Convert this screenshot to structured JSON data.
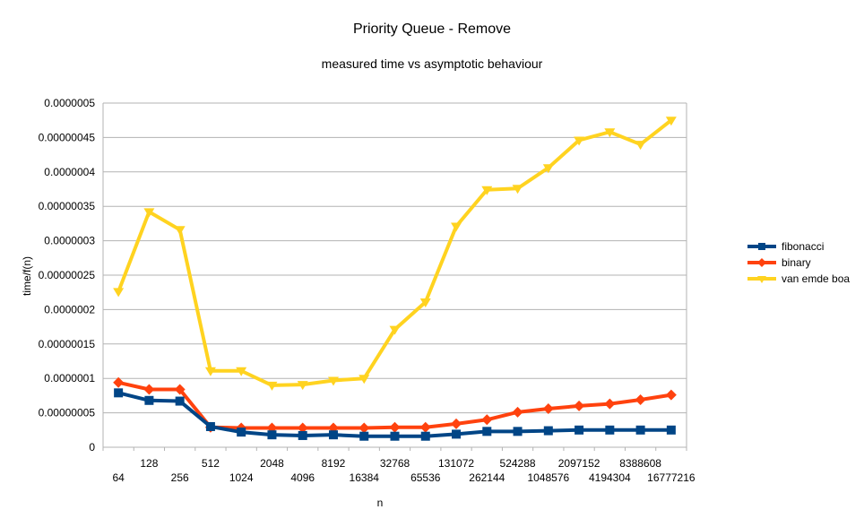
{
  "chart_data": {
    "type": "line",
    "title": "Priority Queue - Remove",
    "subtitle": "measured time vs asymptotic behaviour",
    "xlabel": "n",
    "ylabel": "time/f(n)",
    "categories": [
      "64",
      "128",
      "256",
      "512",
      "1024",
      "2048",
      "4096",
      "8192",
      "16384",
      "32768",
      "65536",
      "131072",
      "262144",
      "524288",
      "1048576",
      "2097152",
      "4194304",
      "8388608",
      "16777216"
    ],
    "ylim": [
      0,
      5e-07
    ],
    "yticks": [
      0,
      5e-08,
      1e-07,
      1.5e-07,
      2e-07,
      2.5e-07,
      3e-07,
      3.5e-07,
      4e-07,
      4.5e-07,
      5e-07
    ],
    "ytick_labels": [
      "0",
      "0.00000005",
      "0.0000001",
      "0.00000015",
      "0.0000002",
      "0.00000025",
      "0.0000003",
      "0.00000035",
      "0.0000004",
      "0.00000045",
      "0.0000005"
    ],
    "grid": true,
    "legend_position": "right",
    "series": [
      {
        "name": "fibonacci",
        "color": "#004586",
        "marker": "square",
        "values": [
          7.9e-08,
          6.8e-08,
          6.7e-08,
          3e-08,
          2.2e-08,
          1.8e-08,
          1.7e-08,
          1.8e-08,
          1.6e-08,
          1.6e-08,
          1.6e-08,
          1.9e-08,
          2.3e-08,
          2.3e-08,
          2.4e-08,
          2.5e-08,
          2.5e-08,
          2.5e-08,
          2.5e-08
        ]
      },
      {
        "name": "binary",
        "color": "#ff420e",
        "marker": "diamond",
        "values": [
          9.4e-08,
          8.4e-08,
          8.4e-08,
          2.9e-08,
          2.8e-08,
          2.8e-08,
          2.8e-08,
          2.8e-08,
          2.8e-08,
          2.9e-08,
          2.9e-08,
          3.4e-08,
          4e-08,
          5.1e-08,
          5.6e-08,
          6e-08,
          6.3e-08,
          6.9e-08,
          7.6e-08
        ]
      },
      {
        "name": "van emde boa",
        "color": "#ffd320",
        "marker": "triangle-down",
        "values": [
          2.26e-07,
          3.42e-07,
          3.16e-07,
          1.11e-07,
          1.11e-07,
          9e-08,
          9.1e-08,
          9.7e-08,
          1e-07,
          1.71e-07,
          2.11e-07,
          3.21e-07,
          3.74e-07,
          3.76e-07,
          4.06e-07,
          4.46e-07,
          4.58e-07,
          4.4e-07,
          4.75e-07
        ]
      }
    ]
  }
}
